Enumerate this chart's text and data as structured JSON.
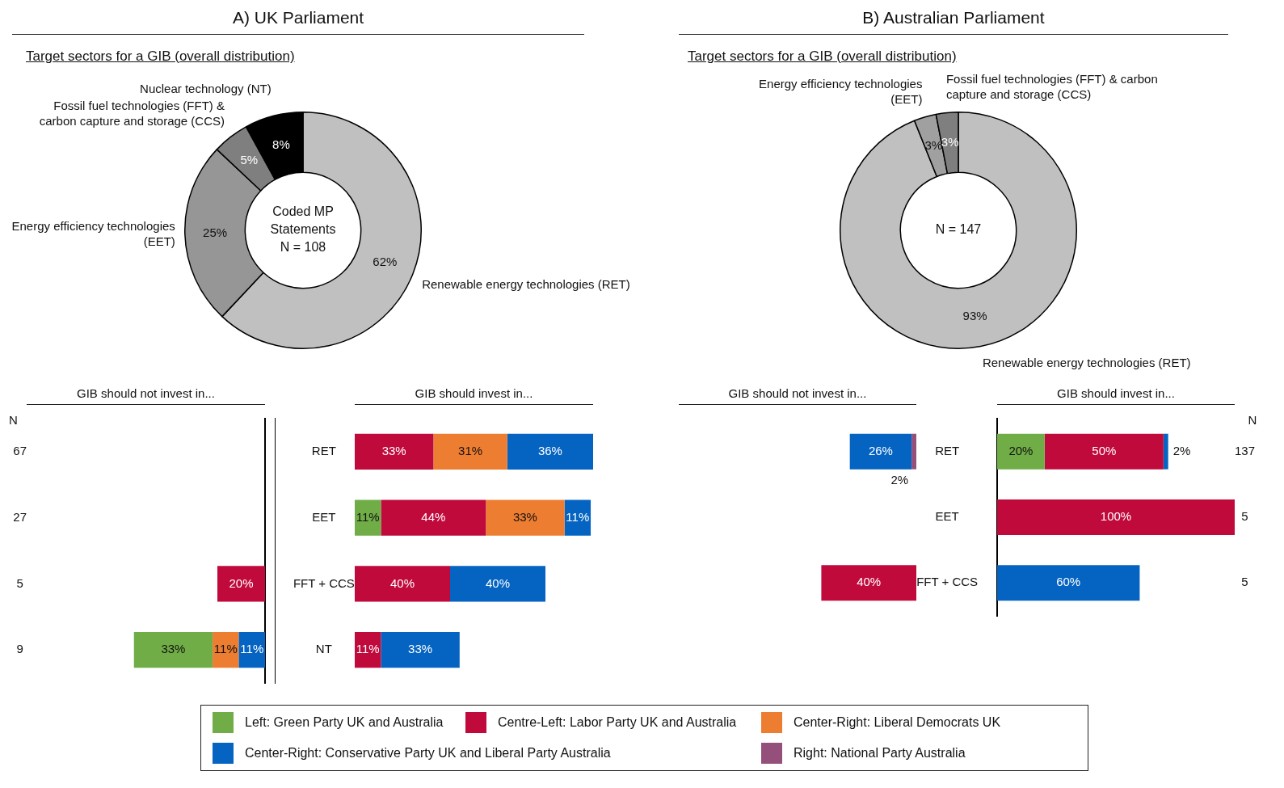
{
  "chart_data": [
    {
      "type": "donut",
      "title": "A) UK Parliament",
      "subtitle": "Target sectors for a GIB (overall distribution)",
      "categories": [
        "Renewable energy technologies (RET)",
        "Energy efficiency technologies (EET)",
        "Fossil fuel technologies (FFT) & carbon capture and storage (CCS)",
        "Nuclear technology (NT)"
      ],
      "values": [
        62,
        25,
        5,
        8
      ],
      "value_labels": [
        "62%",
        "25%",
        "5%",
        "8%"
      ],
      "colors": [
        "#c0c0c0",
        "#969696",
        "#7f7f7f",
        "#000000"
      ],
      "annotations": [
        "Coded MP Statements",
        "N = 108"
      ]
    },
    {
      "type": "donut",
      "title": "B) Australian Parliament",
      "subtitle": "Target sectors for a GIB (overall distribution)",
      "categories": [
        "Renewable energy technologies (RET)",
        "Energy efficiency technologies (EET)",
        "Fossil fuel technologies (FFT) & carbon capture and storage (CCS)"
      ],
      "values": [
        93,
        3,
        3
      ],
      "value_labels": [
        "93%",
        "3%",
        "3%"
      ],
      "colors": [
        "#c0c0c0",
        "#a0a0a0",
        "#7f7f7f"
      ],
      "annotations": [
        "N = 147"
      ]
    },
    {
      "type": "bar",
      "orientation": "horizontal",
      "stacked": true,
      "title": "GIB should not invest in...",
      "ylabel": "N",
      "categories": [
        "67",
        "27",
        "5",
        "9"
      ],
      "tick_labels": "y",
      "series": [
        {
          "color": "#94507a",
          "values": [
            null,
            null,
            null,
            null
          ],
          "value_labels": [
            null,
            null,
            null,
            null
          ]
        },
        {
          "color": "#0563c1",
          "values": [
            null,
            null,
            null,
            11
          ],
          "value_labels": [
            null,
            null,
            null,
            "11%"
          ]
        },
        {
          "color": "#ed7d31",
          "values": [
            null,
            null,
            null,
            11
          ],
          "value_labels": [
            null,
            null,
            null,
            "11%"
          ]
        },
        {
          "color": "#c00a3c",
          "values": [
            null,
            null,
            20,
            null
          ],
          "value_labels": [
            null,
            null,
            "20%",
            null
          ]
        },
        {
          "color": "#70ad47",
          "values": [
            null,
            null,
            null,
            33
          ],
          "value_labels": [
            null,
            null,
            null,
            "33%"
          ]
        }
      ]
    },
    {
      "type": "bar",
      "orientation": "horizontal",
      "stacked": true,
      "title": "GIB should invest in...",
      "categories": [
        "RET",
        "EET",
        "FFT + CCS",
        "NT"
      ],
      "xlim": [
        0,
        100
      ],
      "tick_labels": "y",
      "series": [
        {
          "color": "#70ad47",
          "values": [
            null,
            11,
            null,
            null
          ],
          "value_labels": [
            null,
            "11%",
            null,
            null
          ]
        },
        {
          "color": "#c00a3c",
          "values": [
            33,
            44,
            40,
            11
          ],
          "value_labels": [
            "33%",
            "44%",
            "40%",
            "11%"
          ]
        },
        {
          "color": "#ed7d31",
          "values": [
            31,
            33,
            null,
            null
          ],
          "value_labels": [
            "31%",
            "33%",
            null,
            null
          ]
        },
        {
          "color": "#0563c1",
          "values": [
            36,
            11,
            40,
            33
          ],
          "value_labels": [
            "36%",
            "11%",
            "40%",
            "33%"
          ]
        },
        {
          "color": "#94507a",
          "values": [
            null,
            null,
            null,
            null
          ],
          "value_labels": [
            null,
            null,
            null,
            null
          ]
        }
      ]
    },
    {
      "type": "bar",
      "orientation": "horizontal",
      "stacked": true,
      "title": "GIB should not invest in...",
      "categories": [
        "RET",
        "EET",
        "FFT + CCS"
      ],
      "tick_labels": "y",
      "series": [
        {
          "color": "#94507a",
          "values": [
            2,
            null,
            null
          ],
          "value_labels": [
            "2%",
            null,
            null
          ]
        },
        {
          "color": "#0563c1",
          "values": [
            26,
            null,
            null
          ],
          "value_labels": [
            "26%",
            null,
            null
          ]
        },
        {
          "color": "#ed7d31",
          "values": [
            null,
            null,
            null
          ],
          "value_labels": [
            null,
            null,
            null
          ]
        },
        {
          "color": "#c00a3c",
          "values": [
            null,
            null,
            40
          ],
          "value_labels": [
            null,
            null,
            "40%"
          ]
        },
        {
          "color": "#70ad47",
          "values": [
            null,
            null,
            null
          ],
          "value_labels": [
            null,
            null,
            null
          ]
        }
      ]
    },
    {
      "type": "bar",
      "orientation": "horizontal",
      "stacked": true,
      "title": "GIB should invest in...",
      "ylabel": "N",
      "categories": [
        "137",
        "5",
        "5"
      ],
      "xlim": [
        0,
        100
      ],
      "tick_labels": "y",
      "legend": "bottom",
      "series": [
        {
          "name": "Left: Green Party UK and Australia",
          "color": "#70ad47",
          "values": [
            20,
            null,
            null
          ],
          "value_labels": [
            "20%",
            null,
            null
          ]
        },
        {
          "name": "Centre-Left: Labor Party UK and Australia",
          "color": "#c00a3c",
          "values": [
            50,
            100,
            null
          ],
          "value_labels": [
            "50%",
            "100%",
            null
          ]
        },
        {
          "name": "Center-Right: Liberal Democrats UK",
          "color": "#ed7d31",
          "values": [
            null,
            null,
            null
          ],
          "value_labels": [
            null,
            null,
            null
          ]
        },
        {
          "name": "Center-Right: Conservative Party UK and Liberal Party Australia",
          "color": "#0563c1",
          "values": [
            2,
            null,
            60
          ],
          "value_labels": [
            "2%",
            null,
            "60%"
          ]
        },
        {
          "name": "Right: National Party Australia",
          "color": "#94507a",
          "values": [
            null,
            null,
            null
          ],
          "value_labels": [
            null,
            null,
            null
          ]
        }
      ]
    }
  ]
}
